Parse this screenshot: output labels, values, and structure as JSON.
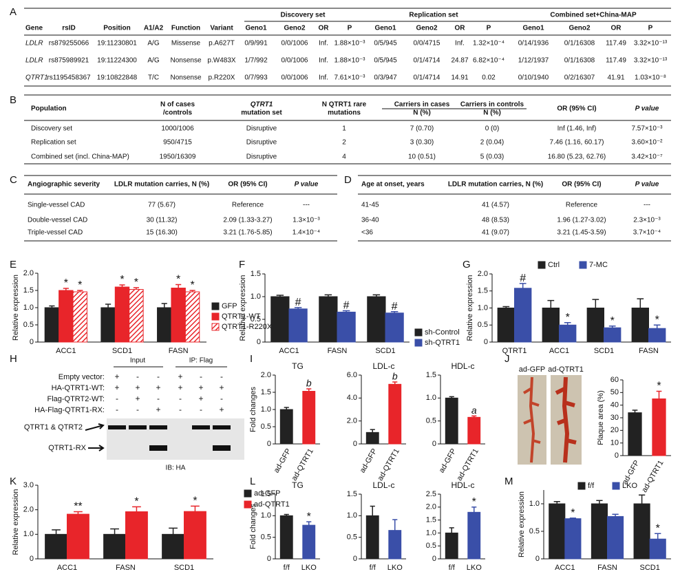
{
  "panels": [
    "A",
    "B",
    "C",
    "D",
    "E",
    "F",
    "G",
    "H",
    "I",
    "J",
    "K",
    "L",
    "M"
  ],
  "tables": {
    "A": {
      "groups": [
        "Discovery set",
        "Replication set",
        "Combined set+China-MAP"
      ],
      "headers": [
        "Gene",
        "rsID",
        "Position",
        "A1/A2",
        "Function",
        "Variant",
        "Geno1",
        "Geno2",
        "OR",
        "P",
        "Geno1",
        "Geno2",
        "OR",
        "P",
        "Geno1",
        "Geno2",
        "OR",
        "P"
      ],
      "rows": [
        [
          "LDLR",
          "rs879255066",
          "19:11230801",
          "A/G",
          "Missense",
          "p.A627T",
          "0/9/991",
          "0/0/1006",
          "Inf.",
          "1.88×10⁻³",
          "0/5/945",
          "0/0/4715",
          "Inf.",
          "1.32×10⁻⁴",
          "0/14/1936",
          "0/1/16308",
          "117.49",
          "3.32×10⁻¹³"
        ],
        [
          "LDLR",
          "rs875989921",
          "19:11224300",
          "A/G",
          "Nonsense",
          "p.W483X",
          "1/7/992",
          "0/0/1006",
          "Inf.",
          "1.88×10⁻³",
          "0/5/945",
          "0/1/4714",
          "24.87",
          "6.82×10⁻⁴",
          "1/12/1937",
          "0/1/16308",
          "117.49",
          "3.32×10⁻¹³"
        ],
        [
          "QTRT1",
          "rs1195458367",
          "19:10822848",
          "T/C",
          "Nonsense",
          "p.R220X",
          "0/7/993",
          "0/0/1006",
          "Inf.",
          "7.61×10⁻³",
          "0/3/947",
          "0/1/4714",
          "14.91",
          "0.02",
          "0/10/1940",
          "0/2/16307",
          "41.91",
          "1.03×10⁻⁸"
        ]
      ]
    },
    "B": {
      "headers": [
        [
          "Population"
        ],
        [
          "N of cases",
          "/controls"
        ],
        [
          "QTRT1",
          "mutation set"
        ],
        [
          "N QTRT1 rare",
          "mutations"
        ],
        [
          "Carriers in cases",
          "N (%)"
        ],
        [
          "Carriers in controls",
          "N (%)"
        ],
        [
          "OR (95% CI)"
        ],
        [
          "P value"
        ]
      ],
      "rows": [
        [
          "Discovery set",
          "1000/1006",
          "Disruptive",
          "1",
          "7 (0.70)",
          "0 (0)",
          "Inf (1.46, Inf)",
          "7.57×10⁻³"
        ],
        [
          "Replication set",
          "950/4715",
          "Disruptive",
          "2",
          "3 (0.30)",
          "2 (0.04)",
          "7.46 (1.16, 60.17)",
          "3.60×10⁻²"
        ],
        [
          "Combined set (incl. China-MAP)",
          "1950/16309",
          "Disruptive",
          "4",
          "10 (0.51)",
          "5 (0.03)",
          "16.80 (5.23, 62.76)",
          "3.42×10⁻⁷"
        ]
      ]
    },
    "C": {
      "headers": [
        [
          "Angiographic severity"
        ],
        [
          "LDLR mutation carries, N (%)"
        ],
        [
          "OR (95% CI)"
        ],
        [
          "P value"
        ]
      ],
      "rows": [
        [
          "Single-vessel CAD",
          "77 (5.67)",
          "Reference",
          "---"
        ],
        [
          "Double-vessel CAD",
          "30 (11.32)",
          "2.09 (1.33-3.27)",
          "1.3×10⁻³"
        ],
        [
          "Triple-vessel CAD",
          "15 (16.30)",
          "3.21 (1.76-5.85)",
          "1.4×10⁻⁴"
        ]
      ]
    },
    "D": {
      "headers": [
        [
          "Age at onset, years"
        ],
        [
          "LDLR mutation carries, N (%)"
        ],
        [
          "OR (95% CI)"
        ],
        [
          "P value"
        ]
      ],
      "rows": [
        [
          "41-45",
          "41 (4.57)",
          "Reference",
          "---"
        ],
        [
          "36-40",
          "48 (8.53)",
          "1.96 (1.27-3.02)",
          "2.3×10⁻³"
        ],
        [
          "<36",
          "41 (9.07)",
          "3.21 (1.45-3.59)",
          "3.7×10⁻⁴"
        ]
      ]
    }
  },
  "blot": {
    "groups": [
      "Input",
      "IP: Flag"
    ],
    "rows": [
      {
        "label": "Empty vector:",
        "signs": [
          "+",
          "-",
          "-",
          "+",
          "-",
          "-"
        ]
      },
      {
        "label": "HA-QTRT1-WT:",
        "signs": [
          "+",
          "+",
          "+",
          "+",
          "+",
          "+"
        ]
      },
      {
        "label": "Flag-QTRT2-WT:",
        "signs": [
          "-",
          "+",
          "-",
          "-",
          "+",
          "-"
        ]
      },
      {
        "label": "HA-Flag-QTRT1-RX:",
        "signs": [
          "-",
          "-",
          "+",
          "-",
          "-",
          "+"
        ]
      }
    ],
    "bands": [
      "QTRT1 & QTRT2",
      "QTRT1-RX"
    ],
    "footer": "IB: HA"
  },
  "photo": {
    "labels": [
      "ad-GFP",
      "ad-QTRT1"
    ]
  },
  "chart_data": [
    {
      "type": "bar",
      "ylabel": "Relative expression",
      "categories": [
        "ACC1",
        "SCD1",
        "FASN"
      ],
      "ylim": [
        0,
        2
      ],
      "yticks": [
        0,
        0.5,
        {
          "value": 1,
          "label": "1.0"
        },
        1.5,
        {
          "value": 2,
          "label": "2.0"
        }
      ],
      "series": [
        {
          "name": "GFP",
          "color": "#222222",
          "values": [
            1,
            1,
            1
          ],
          "errors": [
            0.05,
            0.1,
            0.12
          ],
          "markers": [
            null,
            null,
            null
          ]
        },
        {
          "name": "QTRT1-WT",
          "color": "#e8252a",
          "values": [
            1.5,
            1.6,
            1.57
          ],
          "errors": [
            0.06,
            0.06,
            0.1
          ],
          "markers": [
            "*",
            "*",
            "*"
          ]
        },
        {
          "name": "QTRT1-R220X",
          "color": "#e8252a",
          "hatch": true,
          "values": [
            1.46,
            1.53,
            1.46
          ],
          "errors": [
            0.04,
            0.05,
            0.04
          ],
          "markers": [
            "*",
            "*",
            "*"
          ]
        }
      ]
    },
    {
      "type": "bar",
      "ylabel": "Relative expression",
      "categories": [
        "ACC1",
        "FASN",
        "SCD1"
      ],
      "ylim": [
        0,
        1.5
      ],
      "yticks": [
        0,
        0.5,
        {
          "value": 1,
          "label": "1.0"
        },
        1.5
      ],
      "series": [
        {
          "name": "sh-Control",
          "color": "#222222",
          "values": [
            1,
            1,
            1
          ],
          "errors": [
            0.03,
            0.04,
            0.04
          ],
          "markers": [
            null,
            null,
            null
          ]
        },
        {
          "name": "sh-QTRT1",
          "color": "#3a4fa8",
          "values": [
            0.73,
            0.66,
            0.64
          ],
          "errors": [
            0.03,
            0.03,
            0.03
          ],
          "markers": [
            "#",
            "#",
            "#"
          ]
        }
      ]
    },
    {
      "type": "bar",
      "ylabel": "Relative expression",
      "categories": [
        "QTRT1",
        "ACC1",
        "SCD1",
        "FASN"
      ],
      "ylim": [
        0,
        2
      ],
      "yticks": [
        0,
        0.5,
        {
          "value": 1,
          "label": "1.0"
        },
        1.5,
        {
          "value": 2,
          "label": "2.0"
        }
      ],
      "series": [
        {
          "name": "Ctrl",
          "color": "#222222",
          "values": [
            1,
            1,
            1,
            1
          ],
          "errors": [
            0.04,
            0.22,
            0.25,
            0.27
          ],
          "markers": [
            null,
            null,
            null,
            null
          ]
        },
        {
          "name": "7-MC",
          "color": "#3a4fa8",
          "values": [
            1.58,
            0.5,
            0.42,
            0.4
          ],
          "errors": [
            0.14,
            0.07,
            0.05,
            0.1
          ],
          "markers": [
            "#",
            "*",
            "*",
            "*"
          ]
        }
      ]
    },
    {
      "type": "bar",
      "title": "TG",
      "ylabel": "Fold changes",
      "categories": [
        "ad-GFP",
        "ad-QTRT1"
      ],
      "ylim": [
        0,
        2
      ],
      "yticks": [
        0,
        0.5,
        {
          "value": 1,
          "label": "1.0"
        },
        1.5,
        {
          "value": 2,
          "label": "2.0"
        }
      ],
      "values": [
        1,
        1.53
      ],
      "errors": [
        0.06,
        0.07
      ],
      "colors": [
        "#222222",
        "#e8252a"
      ],
      "markers": [
        null,
        "b"
      ]
    },
    {
      "type": "bar",
      "title": "LDL-c",
      "categories": [
        "ad-GFP",
        "ad-QTRT1"
      ],
      "ylim": [
        0,
        6
      ],
      "yticks": [
        0,
        {
          "value": 2,
          "label": "2.0"
        },
        {
          "value": 4,
          "label": "4.0"
        },
        {
          "value": 6,
          "label": "6.0"
        }
      ],
      "values": [
        1,
        5.2
      ],
      "errors": [
        0.25,
        0.2
      ],
      "colors": [
        "#222222",
        "#e8252a"
      ],
      "markers": [
        null,
        "b"
      ]
    },
    {
      "type": "bar",
      "title": "HDL-c",
      "categories": [
        "ad-GFP",
        "ad-QTRT1"
      ],
      "ylim": [
        0,
        1.5
      ],
      "yticks": [
        0,
        0.5,
        {
          "value": 1,
          "label": "1.0"
        },
        1.5
      ],
      "values": [
        1,
        0.58
      ],
      "errors": [
        0.03,
        0.03
      ],
      "colors": [
        "#222222",
        "#e8252a"
      ],
      "markers": [
        null,
        "a"
      ]
    },
    {
      "type": "bar",
      "ylabel": "Plaque area (%)",
      "categories": [
        "ad-GFP",
        "ad-QTRT1"
      ],
      "ylim": [
        0,
        60
      ],
      "yticks": [
        0,
        10,
        20,
        30,
        40,
        50,
        60
      ],
      "values": [
        34,
        45
      ],
      "errors": [
        2,
        6
      ],
      "colors": [
        "#222222",
        "#e8252a"
      ],
      "markers": [
        null,
        "*"
      ]
    },
    {
      "type": "bar",
      "ylabel": "Relative expression",
      "categories": [
        "ACC1",
        "FASN",
        "SCD1"
      ],
      "ylim": [
        0,
        3
      ],
      "yticks": [
        0,
        {
          "value": 1,
          "label": "1.0"
        },
        {
          "value": 2,
          "label": "2.0"
        },
        {
          "value": 3,
          "label": "3.0"
        }
      ],
      "series": [
        {
          "name": "ad-GFP",
          "color": "#222222",
          "values": [
            1,
            1,
            1
          ],
          "errors": [
            0.18,
            0.22,
            0.25
          ],
          "markers": [
            null,
            null,
            null
          ]
        },
        {
          "name": "ad-QTRT1",
          "color": "#e8252a",
          "values": [
            1.82,
            1.92,
            1.93
          ],
          "errors": [
            0.1,
            0.2,
            0.22
          ],
          "markers": [
            "**",
            "*",
            "*"
          ]
        }
      ]
    },
    {
      "type": "bar",
      "title": "TG",
      "ylabel": "Fold changes",
      "categories": [
        "f/f",
        "LKO"
      ],
      "ylim": [
        0,
        1.5
      ],
      "yticks": [
        0,
        0.5,
        {
          "value": 1,
          "label": "1.0"
        },
        1.5
      ],
      "values": [
        1,
        0.78
      ],
      "errors": [
        0.03,
        0.08
      ],
      "colors": [
        "#222222",
        "#3a4fa8"
      ],
      "markers": [
        null,
        "*"
      ]
    },
    {
      "type": "bar",
      "title": "LDL-c",
      "categories": [
        "f/f",
        "LKO"
      ],
      "ylim": [
        0,
        1.5
      ],
      "yticks": [
        0,
        0.5,
        {
          "value": 1,
          "label": "1.0"
        },
        1.5
      ],
      "values": [
        1,
        0.66
      ],
      "errors": [
        0.22,
        0.25
      ],
      "colors": [
        "#222222",
        "#3a4fa8"
      ],
      "markers": [
        null,
        null
      ]
    },
    {
      "type": "bar",
      "title": "HDL-c",
      "categories": [
        "f/f",
        "LKO"
      ],
      "ylim": [
        0,
        2.5
      ],
      "yticks": [
        0,
        0.5,
        {
          "value": 1,
          "label": "1.0"
        },
        1.5,
        {
          "value": 2,
          "label": "2.0"
        },
        2.5
      ],
      "values": [
        1,
        1.8
      ],
      "errors": [
        0.2,
        0.2
      ],
      "colors": [
        "#222222",
        "#3a4fa8"
      ],
      "markers": [
        null,
        "*"
      ]
    },
    {
      "type": "bar",
      "ylabel": "Relative expression",
      "categories": [
        "ACC1",
        "FASN",
        "SCD1"
      ],
      "ylim": [
        0,
        1.25
      ],
      "yticks": [
        0,
        0.5,
        {
          "value": 1,
          "label": "1.0"
        }
      ],
      "series": [
        {
          "name": "f/f",
          "color": "#222222",
          "values": [
            1,
            1,
            1
          ],
          "errors": [
            0.04,
            0.06,
            0.16
          ],
          "markers": [
            null,
            null,
            null
          ]
        },
        {
          "name": "LKO",
          "color": "#3a4fa8",
          "values": [
            0.73,
            0.77,
            0.36
          ],
          "errors": [
            0.01,
            0.04,
            0.1
          ],
          "markers": [
            "*",
            null,
            "*"
          ]
        }
      ]
    }
  ]
}
